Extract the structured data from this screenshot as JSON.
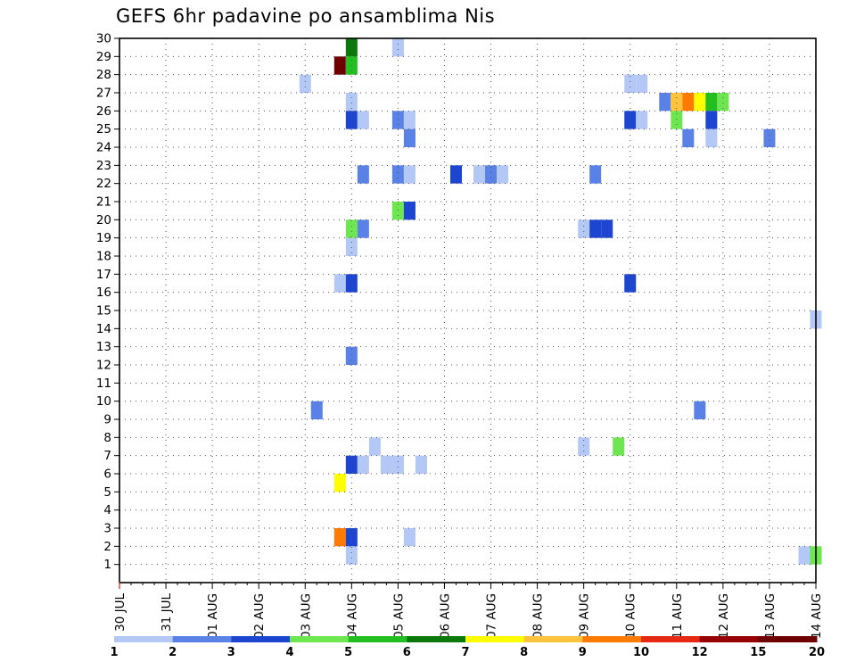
{
  "chart_data": {
    "type": "heatmap",
    "title": "GEFS 6hr padavine po ansamblima Nis",
    "x_labels": [
      "30 JUL",
      "31 JUL",
      "01 AUG",
      "02 AUG",
      "03 AUG",
      "04 AUG",
      "05 AUG",
      "06 AUG",
      "07 AUG",
      "08 AUG",
      "09 AUG",
      "10 AUG",
      "11 AUG",
      "12 AUG",
      "13 AUG",
      "14 AUG"
    ],
    "x_range_days": [
      0,
      15
    ],
    "y_labels": [
      "1",
      "2",
      "3",
      "4",
      "5",
      "6",
      "7",
      "8",
      "9",
      "10",
      "11",
      "12",
      "13",
      "14",
      "15",
      "16",
      "17",
      "18",
      "19",
      "20",
      "21",
      "22",
      "23",
      "24",
      "25",
      "26",
      "27",
      "28",
      "29",
      "30"
    ],
    "y_range": [
      0,
      30
    ],
    "grid": true,
    "colorbar": {
      "labels": [
        "1",
        "2",
        "3",
        "4",
        "5",
        "6",
        "7",
        "8",
        "9",
        "10",
        "12",
        "15",
        "20"
      ],
      "colors": [
        "#b4c8f5",
        "#5a82e6",
        "#1c46d2",
        "#6ee650",
        "#22be22",
        "#0a780a",
        "#ffff00",
        "#ffc43c",
        "#ff7a00",
        "#e62814",
        "#960000",
        "#6e0000"
      ]
    },
    "cells": [
      [
        5.0,
        29.5,
        5
      ],
      [
        4.75,
        28.5,
        11
      ],
      [
        5.0,
        28.5,
        4
      ],
      [
        4.0,
        27.5,
        0
      ],
      [
        6.0,
        29.5,
        0
      ],
      [
        5.0,
        26.5,
        0
      ],
      [
        11.0,
        27.5,
        0
      ],
      [
        11.25,
        27.5,
        0
      ],
      [
        11.75,
        26.5,
        1
      ],
      [
        12.0,
        26.5,
        7
      ],
      [
        12.25,
        26.5,
        8
      ],
      [
        12.5,
        26.5,
        6
      ],
      [
        12.75,
        26.5,
        4
      ],
      [
        13.0,
        26.5,
        3
      ],
      [
        5.0,
        25.5,
        2
      ],
      [
        5.25,
        25.5,
        0
      ],
      [
        6.0,
        25.5,
        1
      ],
      [
        6.25,
        25.5,
        0
      ],
      [
        11.0,
        25.5,
        2
      ],
      [
        11.25,
        25.5,
        0
      ],
      [
        12.0,
        25.5,
        3
      ],
      [
        12.75,
        25.5,
        2
      ],
      [
        6.25,
        24.5,
        1
      ],
      [
        12.25,
        24.5,
        1
      ],
      [
        12.75,
        24.5,
        0
      ],
      [
        14.0,
        24.5,
        1
      ],
      [
        5.25,
        22.5,
        1
      ],
      [
        6.0,
        22.5,
        1
      ],
      [
        6.25,
        22.5,
        0
      ],
      [
        7.25,
        22.5,
        2
      ],
      [
        7.75,
        22.5,
        0
      ],
      [
        8.0,
        22.5,
        1
      ],
      [
        8.25,
        22.5,
        0
      ],
      [
        10.25,
        22.5,
        1
      ],
      [
        6.0,
        20.5,
        3
      ],
      [
        6.25,
        20.5,
        2
      ],
      [
        5.0,
        19.5,
        3
      ],
      [
        5.25,
        19.5,
        1
      ],
      [
        10.0,
        19.5,
        0
      ],
      [
        10.25,
        19.5,
        2
      ],
      [
        10.5,
        19.5,
        2
      ],
      [
        5.0,
        18.5,
        0
      ],
      [
        4.75,
        16.5,
        0
      ],
      [
        5.0,
        16.5,
        2
      ],
      [
        11.0,
        16.5,
        2
      ],
      [
        15.0,
        14.5,
        0
      ],
      [
        5.0,
        12.5,
        1
      ],
      [
        4.25,
        9.5,
        1
      ],
      [
        12.5,
        9.5,
        1
      ],
      [
        5.5,
        7.5,
        0
      ],
      [
        10.0,
        7.5,
        0
      ],
      [
        10.75,
        7.5,
        3
      ],
      [
        5.0,
        6.5,
        2
      ],
      [
        5.25,
        6.5,
        0
      ],
      [
        5.75,
        6.5,
        0
      ],
      [
        6.0,
        6.5,
        0
      ],
      [
        6.5,
        6.5,
        0
      ],
      [
        4.75,
        5.5,
        6
      ],
      [
        4.75,
        2.5,
        8
      ],
      [
        5.0,
        2.5,
        2
      ],
      [
        6.25,
        2.5,
        0
      ],
      [
        5.0,
        1.5,
        0
      ],
      [
        14.75,
        1.5,
        0
      ],
      [
        15.0,
        1.5,
        3
      ]
    ]
  }
}
